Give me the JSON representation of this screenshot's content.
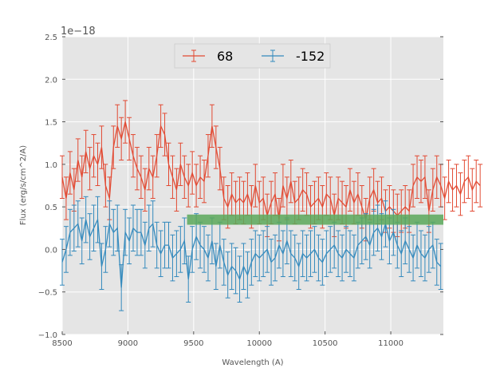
{
  "chart_data": {
    "type": "line",
    "title": "",
    "xlabel": "Wavelength (A)",
    "ylabel": "Flux (erg/s/cm^2/A)",
    "y_offset_label": "1e−18",
    "xlim": [
      8500,
      11400
    ],
    "ylim": [
      -1.0,
      2.5
    ],
    "grid": true,
    "legend_position": "top-center",
    "xticks": [
      8500,
      9000,
      9500,
      10000,
      10500,
      11000
    ],
    "xtick_labels": [
      "8500",
      "9000",
      "9500",
      "10000",
      "10500",
      "11000"
    ],
    "yticks": [
      -1.0,
      -0.5,
      0.0,
      0.5,
      1.0,
      1.5,
      2.0,
      2.5
    ],
    "ytick_labels": [
      "−1.0",
      "−0.5",
      "0.0",
      "0.5",
      "1.0",
      "1.5",
      "2.0",
      "2.5"
    ],
    "x_start": 8500,
    "x_step": 30,
    "band": {
      "x_from": 9450,
      "x_to": 11400,
      "y_from": 0.29,
      "y_to": 0.41,
      "color": "#5aa85a"
    },
    "series": [
      {
        "name": "68",
        "color": "#e24a33",
        "yerr": 0.25,
        "values": [
          0.85,
          0.6,
          0.9,
          0.7,
          1.05,
          0.85,
          1.15,
          0.95,
          1.1,
          1.0,
          1.2,
          0.75,
          0.6,
          1.2,
          1.45,
          1.3,
          1.5,
          1.3,
          1.1,
          0.95,
          0.85,
          0.7,
          0.95,
          0.85,
          1.1,
          1.45,
          1.35,
          1.0,
          0.85,
          0.7,
          1.0,
          0.85,
          0.75,
          0.9,
          0.75,
          0.85,
          0.8,
          1.1,
          1.45,
          1.2,
          0.95,
          0.6,
          0.5,
          0.65,
          0.55,
          0.6,
          0.55,
          0.65,
          0.5,
          0.75,
          0.55,
          0.6,
          0.4,
          0.55,
          0.65,
          0.35,
          0.75,
          0.6,
          0.8,
          0.55,
          0.6,
          0.7,
          0.65,
          0.5,
          0.55,
          0.6,
          0.5,
          0.65,
          0.6,
          0.4,
          0.6,
          0.55,
          0.5,
          0.7,
          0.55,
          0.65,
          0.5,
          0.35,
          0.6,
          0.7,
          0.55,
          0.6,
          0.45,
          0.5,
          0.45,
          0.4,
          0.45,
          0.5,
          0.45,
          0.75,
          0.85,
          0.8,
          0.85,
          0.45,
          0.7,
          0.85,
          0.75,
          0.6,
          0.8,
          0.7,
          0.75,
          0.65,
          0.8,
          0.85,
          0.7,
          0.8,
          0.75
        ]
      },
      {
        "name": "-152",
        "color": "#348abd",
        "yerr": 0.27,
        "values": [
          -0.15,
          0.0,
          0.2,
          0.25,
          0.3,
          0.1,
          0.35,
          0.15,
          0.25,
          0.35,
          -0.2,
          0.0,
          0.3,
          0.2,
          0.25,
          -0.45,
          0.2,
          0.1,
          0.25,
          0.2,
          0.2,
          0.05,
          0.25,
          0.3,
          0.05,
          -0.05,
          0.05,
          0.05,
          -0.1,
          -0.05,
          0.0,
          0.1,
          -0.35,
          0.0,
          0.15,
          0.05,
          0.0,
          -0.1,
          0.1,
          -0.2,
          0.05,
          -0.15,
          -0.3,
          -0.2,
          -0.25,
          -0.35,
          -0.2,
          -0.3,
          -0.15,
          -0.05,
          -0.1,
          -0.05,
          0.0,
          -0.15,
          -0.1,
          0.05,
          -0.05,
          0.1,
          -0.05,
          -0.1,
          -0.2,
          -0.05,
          -0.1,
          -0.05,
          0.0,
          -0.1,
          -0.15,
          -0.05,
          0.0,
          0.05,
          -0.05,
          -0.1,
          0.0,
          -0.05,
          -0.1,
          0.05,
          0.1,
          0.15,
          0.05,
          0.2,
          0.25,
          0.15,
          0.3,
          0.1,
          0.2,
          0.05,
          -0.05,
          0.1,
          0.0,
          -0.1,
          0.05,
          -0.05,
          -0.1,
          0.0,
          0.05,
          -0.15,
          -0.2
        ]
      }
    ]
  }
}
